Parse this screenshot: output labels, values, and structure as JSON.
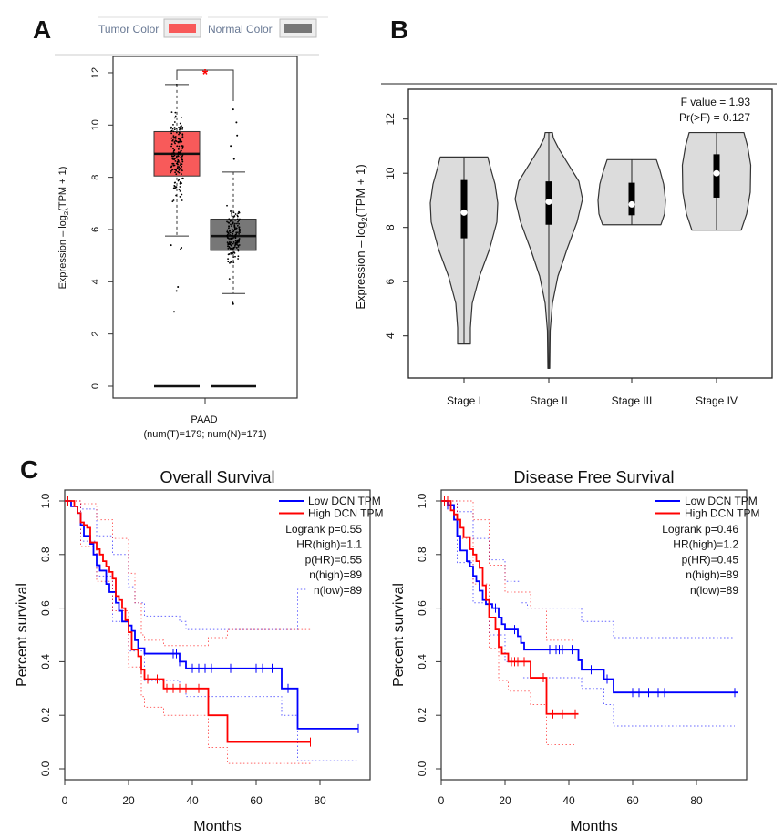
{
  "panels": {
    "a": "A",
    "b": "B",
    "c": "C"
  },
  "colors": {
    "tumor": "#f85a5a",
    "normal": "#777777",
    "low": "#0000ff",
    "high": "#ff0000",
    "violin": "#dcdcdc",
    "significance": "#ff0000"
  },
  "chart_data": [
    {
      "type": "boxplot",
      "legend": [
        {
          "label": "Tumor Color",
          "color": "#f85a5a"
        },
        {
          "label": "Normal Color",
          "color": "#777777"
        }
      ],
      "ylabel_prefix": "Expression – log",
      "ylabel_sub": "2",
      "ylabel_suffix": "(TPM + 1)",
      "yticks": [
        0,
        2,
        4,
        6,
        8,
        10,
        12
      ],
      "ylim": [
        -0.5,
        12.5
      ],
      "category": "PAAD",
      "category_note": "(num(T)=179; num(N)=171)",
      "significance": "*",
      "groups": [
        {
          "name": "Tumor",
          "n": 179,
          "whisker_low": 5.75,
          "q1": 8.05,
          "median": 8.9,
          "q3": 9.75,
          "whisker_high": 11.55,
          "outliers": [
            5.4,
            5.3,
            5.25,
            3.8,
            3.65,
            2.85
          ]
        },
        {
          "name": "Normal",
          "n": 171,
          "whisker_low": 3.55,
          "q1": 5.2,
          "median": 5.75,
          "q3": 6.4,
          "whisker_high": 8.2,
          "outliers": [
            10.6,
            10.1,
            9.6,
            9.2,
            8.7,
            3.2,
            3.15
          ]
        }
      ]
    },
    {
      "type": "violin",
      "ylabel_prefix": "Expression – log",
      "ylabel_sub": "2",
      "ylabel_suffix": "(TPM + 1)",
      "yticks": [
        4,
        6,
        8,
        10,
        12
      ],
      "annotation": [
        "F value = 1.93",
        "Pr(>F) = 0.127"
      ],
      "categories": [
        "Stage I",
        "Stage II",
        "Stage III",
        "Stage IV"
      ],
      "groups": [
        {
          "min": 3.7,
          "q1": 7.6,
          "median": 8.55,
          "q3": 9.75,
          "max": 10.6
        },
        {
          "min": 2.8,
          "q1": 8.1,
          "median": 8.95,
          "q3": 9.7,
          "max": 11.5
        },
        {
          "min": 8.1,
          "q1": 8.45,
          "median": 8.85,
          "q3": 9.65,
          "max": 10.5
        },
        {
          "min": 7.9,
          "q1": 9.1,
          "median": 10.0,
          "q3": 10.7,
          "max": 11.5
        }
      ]
    },
    {
      "type": "line",
      "title": "Overall Survival",
      "xlabel": "Months",
      "ylabel": "Percent survival",
      "xticks": [
        0,
        20,
        40,
        60,
        80
      ],
      "yticks": [
        "0.0",
        "0.2",
        "0.4",
        "0.6",
        "0.8",
        "1.0"
      ],
      "legend": [
        "Low DCN TPM",
        "High DCN TPM"
      ],
      "stats": [
        "Logrank p=0.55",
        "HR(high)=1.1",
        "p(HR)=0.55",
        "n(high)=89",
        "n(low)=89"
      ],
      "series": [
        {
          "name": "Low DCN TPM",
          "color": "#0000ff",
          "steps": [
            [
              0,
              1
            ],
            [
              2,
              0.98
            ],
            [
              4,
              0.955
            ],
            [
              5,
              0.91
            ],
            [
              6,
              0.87
            ],
            [
              8,
              0.84
            ],
            [
              9,
              0.8
            ],
            [
              10,
              0.76
            ],
            [
              11,
              0.74
            ],
            [
              13,
              0.69
            ],
            [
              14,
              0.66
            ],
            [
              16,
              0.62
            ],
            [
              17,
              0.59
            ],
            [
              18,
              0.55
            ],
            [
              20,
              0.535
            ],
            [
              21,
              0.515
            ],
            [
              22,
              0.48
            ],
            [
              23,
              0.45
            ],
            [
              25,
              0.43
            ],
            [
              36,
              0.4
            ],
            [
              38,
              0.375
            ],
            [
              68,
              0.3
            ],
            [
              73,
              0.15
            ],
            [
              92,
              0.15
            ]
          ],
          "censored": [
            33,
            34,
            35,
            36,
            40,
            42,
            44,
            46,
            52,
            60,
            62,
            65,
            70,
            92
          ],
          "ci_upper": [
            [
              0,
              1
            ],
            [
              5,
              0.97
            ],
            [
              10,
              0.87
            ],
            [
              15,
              0.8
            ],
            [
              20,
              0.68
            ],
            [
              22,
              0.62
            ],
            [
              25,
              0.57
            ],
            [
              36,
              0.55
            ],
            [
              38,
              0.52
            ],
            [
              73,
              0.52
            ],
            [
              73,
              0.67
            ],
            [
              76,
              0.67
            ]
          ],
          "ci_lower": [
            [
              0,
              1
            ],
            [
              5,
              0.85
            ],
            [
              10,
              0.72
            ],
            [
              15,
              0.55
            ],
            [
              20,
              0.44
            ],
            [
              25,
              0.33
            ],
            [
              36,
              0.3
            ],
            [
              38,
              0.27
            ],
            [
              68,
              0.2
            ],
            [
              73,
              0.03
            ],
            [
              92,
              0.03
            ]
          ]
        },
        {
          "name": "High DCN TPM",
          "color": "#ff0000",
          "steps": [
            [
              0,
              1
            ],
            [
              3,
              0.98
            ],
            [
              4,
              0.955
            ],
            [
              5,
              0.92
            ],
            [
              6,
              0.91
            ],
            [
              7,
              0.9
            ],
            [
              8,
              0.845
            ],
            [
              10,
              0.82
            ],
            [
              11,
              0.8
            ],
            [
              12,
              0.775
            ],
            [
              13,
              0.755
            ],
            [
              14,
              0.735
            ],
            [
              15,
              0.71
            ],
            [
              16,
              0.645
            ],
            [
              17,
              0.63
            ],
            [
              18,
              0.6
            ],
            [
              19,
              0.555
            ],
            [
              20,
              0.51
            ],
            [
              21,
              0.445
            ],
            [
              23,
              0.42
            ],
            [
              24,
              0.37
            ],
            [
              25,
              0.335
            ],
            [
              31,
              0.3
            ],
            [
              45,
              0.2
            ],
            [
              51,
              0.1
            ],
            [
              77,
              0.1
            ]
          ],
          "censored": [
            1,
            24,
            26,
            29,
            32,
            33,
            34,
            36,
            38,
            42,
            77
          ],
          "ci_upper": [
            [
              0,
              1
            ],
            [
              5,
              0.99
            ],
            [
              10,
              0.93
            ],
            [
              15,
              0.86
            ],
            [
              20,
              0.73
            ],
            [
              22,
              0.62
            ],
            [
              24,
              0.5
            ],
            [
              25,
              0.48
            ],
            [
              31,
              0.46
            ],
            [
              45,
              0.49
            ],
            [
              51,
              0.52
            ],
            [
              77,
              0.52
            ]
          ],
          "ci_lower": [
            [
              0,
              1
            ],
            [
              5,
              0.83
            ],
            [
              10,
              0.7
            ],
            [
              15,
              0.59
            ],
            [
              20,
              0.38
            ],
            [
              24,
              0.27
            ],
            [
              25,
              0.23
            ],
            [
              31,
              0.2
            ],
            [
              45,
              0.08
            ],
            [
              51,
              0.02
            ],
            [
              77,
              0.02
            ]
          ]
        }
      ]
    },
    {
      "type": "line",
      "title": "Disease Free Survival",
      "xlabel": "Months",
      "ylabel": "Percent survival",
      "xticks": [
        0,
        20,
        40,
        60,
        80
      ],
      "yticks": [
        "0.0",
        "0.2",
        "0.4",
        "0.6",
        "0.8",
        "1.0"
      ],
      "legend": [
        "Low DCN TPM",
        "High DCN TPM"
      ],
      "stats": [
        "Logrank p=0.46",
        "HR(high)=1.2",
        "p(HR)=0.45",
        "n(high)=89",
        "n(low)=89"
      ],
      "series": [
        {
          "name": "Low DCN TPM",
          "color": "#0000ff",
          "steps": [
            [
              0,
              1
            ],
            [
              2,
              0.985
            ],
            [
              4,
              0.93
            ],
            [
              5,
              0.87
            ],
            [
              6,
              0.815
            ],
            [
              8,
              0.775
            ],
            [
              9,
              0.755
            ],
            [
              10,
              0.72
            ],
            [
              11,
              0.7
            ],
            [
              12,
              0.665
            ],
            [
              13,
              0.63
            ],
            [
              14,
              0.615
            ],
            [
              16,
              0.6
            ],
            [
              18,
              0.565
            ],
            [
              19,
              0.54
            ],
            [
              20,
              0.52
            ],
            [
              24,
              0.495
            ],
            [
              25,
              0.47
            ],
            [
              26,
              0.445
            ],
            [
              43,
              0.405
            ],
            [
              44,
              0.37
            ],
            [
              51,
              0.335
            ],
            [
              54,
              0.285
            ],
            [
              93,
              0.285
            ]
          ],
          "censored": [
            1,
            2,
            17,
            23,
            34,
            36,
            37,
            38,
            41,
            47,
            52,
            60,
            62,
            65,
            68,
            70,
            92
          ],
          "ci_upper": [
            [
              0,
              1
            ],
            [
              5,
              0.96
            ],
            [
              10,
              0.86
            ],
            [
              15,
              0.78
            ],
            [
              20,
              0.7
            ],
            [
              25,
              0.62
            ],
            [
              27,
              0.6
            ],
            [
              43,
              0.6
            ],
            [
              44,
              0.55
            ],
            [
              51,
              0.55
            ],
            [
              54,
              0.49
            ],
            [
              92,
              0.49
            ]
          ],
          "ci_lower": [
            [
              0,
              1
            ],
            [
              5,
              0.77
            ],
            [
              10,
              0.62
            ],
            [
              15,
              0.5
            ],
            [
              20,
              0.4
            ],
            [
              25,
              0.34
            ],
            [
              43,
              0.34
            ],
            [
              44,
              0.3
            ],
            [
              51,
              0.24
            ],
            [
              54,
              0.16
            ],
            [
              92,
              0.16
            ]
          ]
        },
        {
          "name": "High DCN TPM",
          "color": "#ff0000",
          "steps": [
            [
              0,
              1
            ],
            [
              3,
              0.965
            ],
            [
              4,
              0.95
            ],
            [
              5,
              0.93
            ],
            [
              6,
              0.9
            ],
            [
              7,
              0.865
            ],
            [
              9,
              0.82
            ],
            [
              10,
              0.8
            ],
            [
              11,
              0.775
            ],
            [
              12,
              0.75
            ],
            [
              13,
              0.685
            ],
            [
              14,
              0.63
            ],
            [
              15,
              0.565
            ],
            [
              17,
              0.52
            ],
            [
              18,
              0.455
            ],
            [
              19,
              0.43
            ],
            [
              21,
              0.4
            ],
            [
              28,
              0.34
            ],
            [
              33,
              0.205
            ],
            [
              43,
              0.205
            ]
          ],
          "censored": [
            1,
            2,
            22,
            23,
            24,
            25,
            26,
            32,
            35,
            38,
            42
          ],
          "ci_upper": [
            [
              0,
              1
            ],
            [
              5,
              1
            ],
            [
              10,
              0.93
            ],
            [
              15,
              0.76
            ],
            [
              20,
              0.66
            ],
            [
              28,
              0.6
            ],
            [
              33,
              0.48
            ],
            [
              42,
              0.48
            ]
          ],
          "ci_lower": [
            [
              0,
              1
            ],
            [
              5,
              0.86
            ],
            [
              10,
              0.69
            ],
            [
              15,
              0.45
            ],
            [
              18,
              0.33
            ],
            [
              21,
              0.29
            ],
            [
              28,
              0.24
            ],
            [
              33,
              0.09
            ],
            [
              42,
              0.09
            ]
          ]
        }
      ]
    }
  ]
}
